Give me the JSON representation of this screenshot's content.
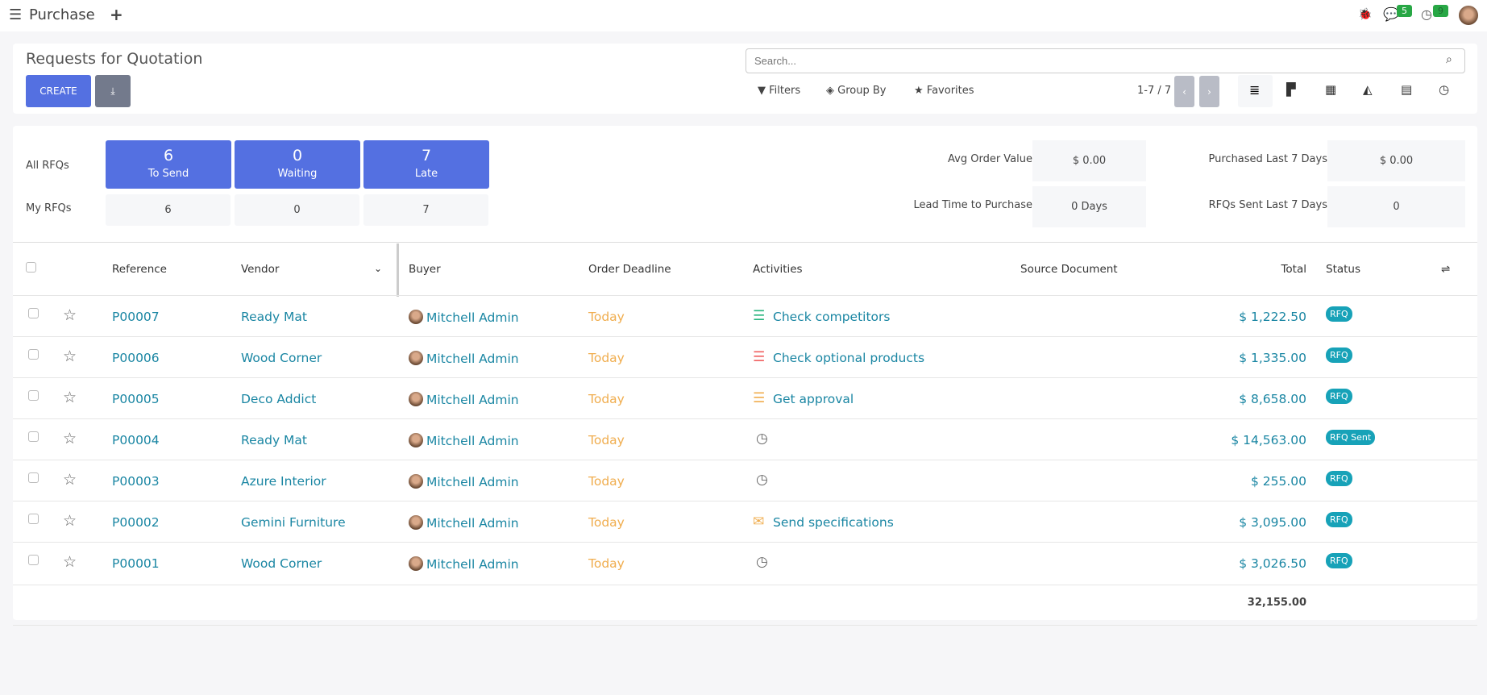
{
  "topbar": {
    "app_title": "Purchase",
    "messages_count": "5",
    "activities_count": "9"
  },
  "control": {
    "title": "Requests for Quotation",
    "create_label": "CREATE",
    "search_placeholder": "Search...",
    "filters": "Filters",
    "group_by": "Group By",
    "favorites": "Favorites",
    "pager": "1-7 / 7"
  },
  "dashboard": {
    "all_label": "All RFQs",
    "my_label": "My RFQs",
    "tiles": [
      {
        "value": "6",
        "label": "To Send",
        "mine": "6"
      },
      {
        "value": "0",
        "label": "Waiting",
        "mine": "0"
      },
      {
        "value": "7",
        "label": "Late",
        "mine": "7"
      }
    ],
    "kpis": [
      {
        "label": "Avg Order Value",
        "value": "$ 0.00"
      },
      {
        "label": "Purchased Last 7 Days",
        "value": "$ 0.00"
      },
      {
        "label": "Lead Time to Purchase",
        "value": "0 Days"
      },
      {
        "label": "RFQs Sent Last 7 Days",
        "value": "0"
      }
    ]
  },
  "table": {
    "headers": {
      "reference": "Reference",
      "vendor": "Vendor",
      "buyer": "Buyer",
      "deadline": "Order Deadline",
      "activities": "Activities",
      "source": "Source Document",
      "total": "Total",
      "status": "Status"
    },
    "rows": [
      {
        "reference": "P00007",
        "vendor": "Ready Mat",
        "buyer": "Mitchell Admin",
        "deadline": "Today",
        "activity": "Check competitors",
        "activity_icon": "activity-list-icon",
        "activity_color": "#28b47e",
        "total": "$ 1,222.50",
        "status": "RFQ"
      },
      {
        "reference": "P00006",
        "vendor": "Wood Corner",
        "buyer": "Mitchell Admin",
        "deadline": "Today",
        "activity": "Check optional products",
        "activity_icon": "activity-list-icon",
        "activity_color": "#f06060",
        "total": "$ 1,335.00",
        "status": "RFQ"
      },
      {
        "reference": "P00005",
        "vendor": "Deco Addict",
        "buyer": "Mitchell Admin",
        "deadline": "Today",
        "activity": "Get approval",
        "activity_icon": "activity-list-icon",
        "activity_color": "#f0ad4e",
        "total": "$ 8,658.00",
        "status": "RFQ"
      },
      {
        "reference": "P00004",
        "vendor": "Ready Mat",
        "buyer": "Mitchell Admin",
        "deadline": "Today",
        "activity": "",
        "activity_icon": "clock-icon",
        "activity_color": "#666666",
        "total": "$ 14,563.00",
        "status": "RFQ Sent"
      },
      {
        "reference": "P00003",
        "vendor": "Azure Interior",
        "buyer": "Mitchell Admin",
        "deadline": "Today",
        "activity": "",
        "activity_icon": "clock-icon",
        "activity_color": "#666666",
        "total": "$ 255.00",
        "status": "RFQ"
      },
      {
        "reference": "P00002",
        "vendor": "Gemini Furniture",
        "buyer": "Mitchell Admin",
        "deadline": "Today",
        "activity": "Send specifications",
        "activity_icon": "envelope-icon",
        "activity_color": "#f0ad4e",
        "total": "$ 3,095.00",
        "status": "RFQ"
      },
      {
        "reference": "P00001",
        "vendor": "Wood Corner",
        "buyer": "Mitchell Admin",
        "deadline": "Today",
        "activity": "",
        "activity_icon": "clock-icon",
        "activity_color": "#666666",
        "total": "$ 3,026.50",
        "status": "RFQ"
      }
    ],
    "grand_total": "32,155.00"
  },
  "colors": {
    "primary": "#5470e1",
    "link": "#1a86a3",
    "deadline": "#f0ad4e",
    "badge": "#17a2b8",
    "counter": "#28a745"
  }
}
